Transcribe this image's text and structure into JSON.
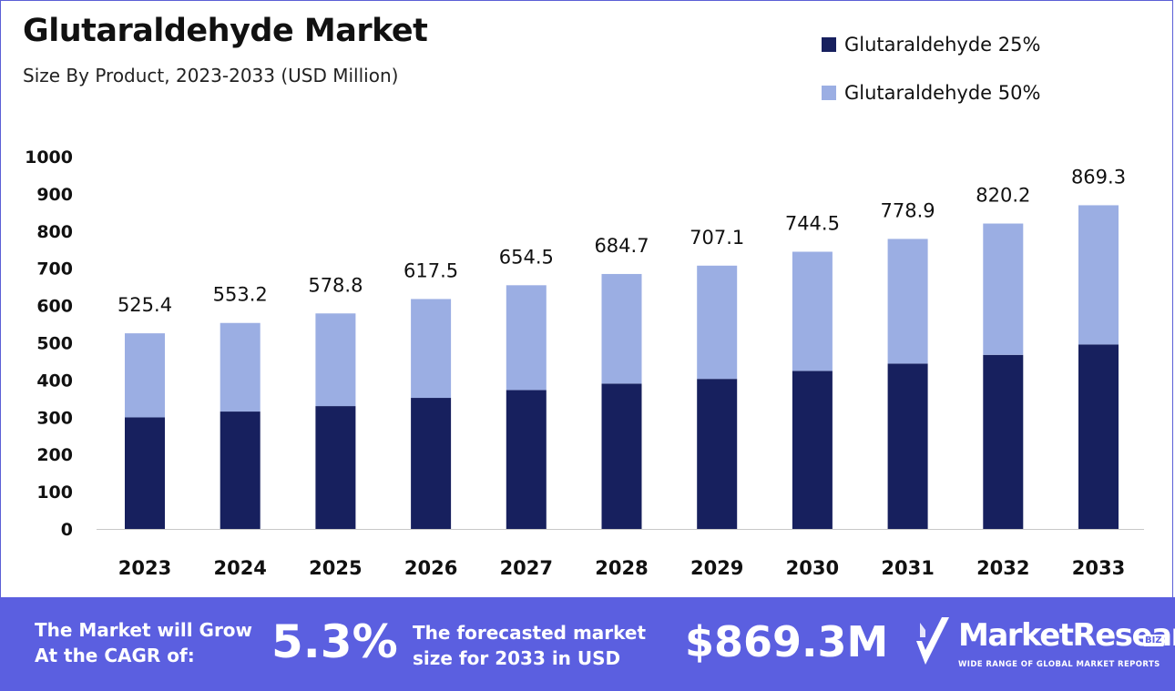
{
  "chart_data": {
    "type": "bar",
    "stacked": true,
    "title": "Glutaraldehyde Market",
    "subtitle": "Size By Product, 2023-2033 (USD Million)",
    "categories": [
      "2023",
      "2024",
      "2025",
      "2026",
      "2027",
      "2028",
      "2029",
      "2030",
      "2031",
      "2032",
      "2033"
    ],
    "series": [
      {
        "name": "Glutaraldehyde 25%",
        "color": "#17205e",
        "values": [
          299.5,
          315.3,
          329.9,
          352.0,
          373.1,
          390.3,
          403.0,
          424.4,
          444.0,
          467.5,
          495.5
        ]
      },
      {
        "name": "Glutaraldehyde 50%",
        "color": "#9baee3",
        "values": [
          225.9,
          237.9,
          248.9,
          265.5,
          281.4,
          294.4,
          304.1,
          320.1,
          334.9,
          352.7,
          373.8
        ]
      }
    ],
    "totals": [
      "525.4",
      "553.2",
      "578.8",
      "617.5",
      "654.5",
      "684.7",
      "707.1",
      "744.5",
      "778.9",
      "820.2",
      "869.3"
    ],
    "yticks": [
      0,
      100,
      200,
      300,
      400,
      500,
      600,
      700,
      800,
      900,
      1000
    ],
    "ylim": [
      0,
      1000
    ],
    "xlabel": "",
    "ylabel": "",
    "legend_position": "top-right",
    "grid": false
  },
  "footer": {
    "cagr_label": [
      "The Market will Grow",
      "At the CAGR of:"
    ],
    "cagr_value": "5.3%",
    "forecast_label": [
      "The forecasted market",
      "size for 2033 in USD"
    ],
    "forecast_value": "$869.3M",
    "brand_name": "MarketResearch",
    "brand_suffix": "BIZ",
    "brand_tagline": "WIDE RANGE OF GLOBAL MARKET REPORTS"
  },
  "colors": {
    "footer_bg": "#5b5fe0",
    "frame_border": "#5b5fd6"
  }
}
